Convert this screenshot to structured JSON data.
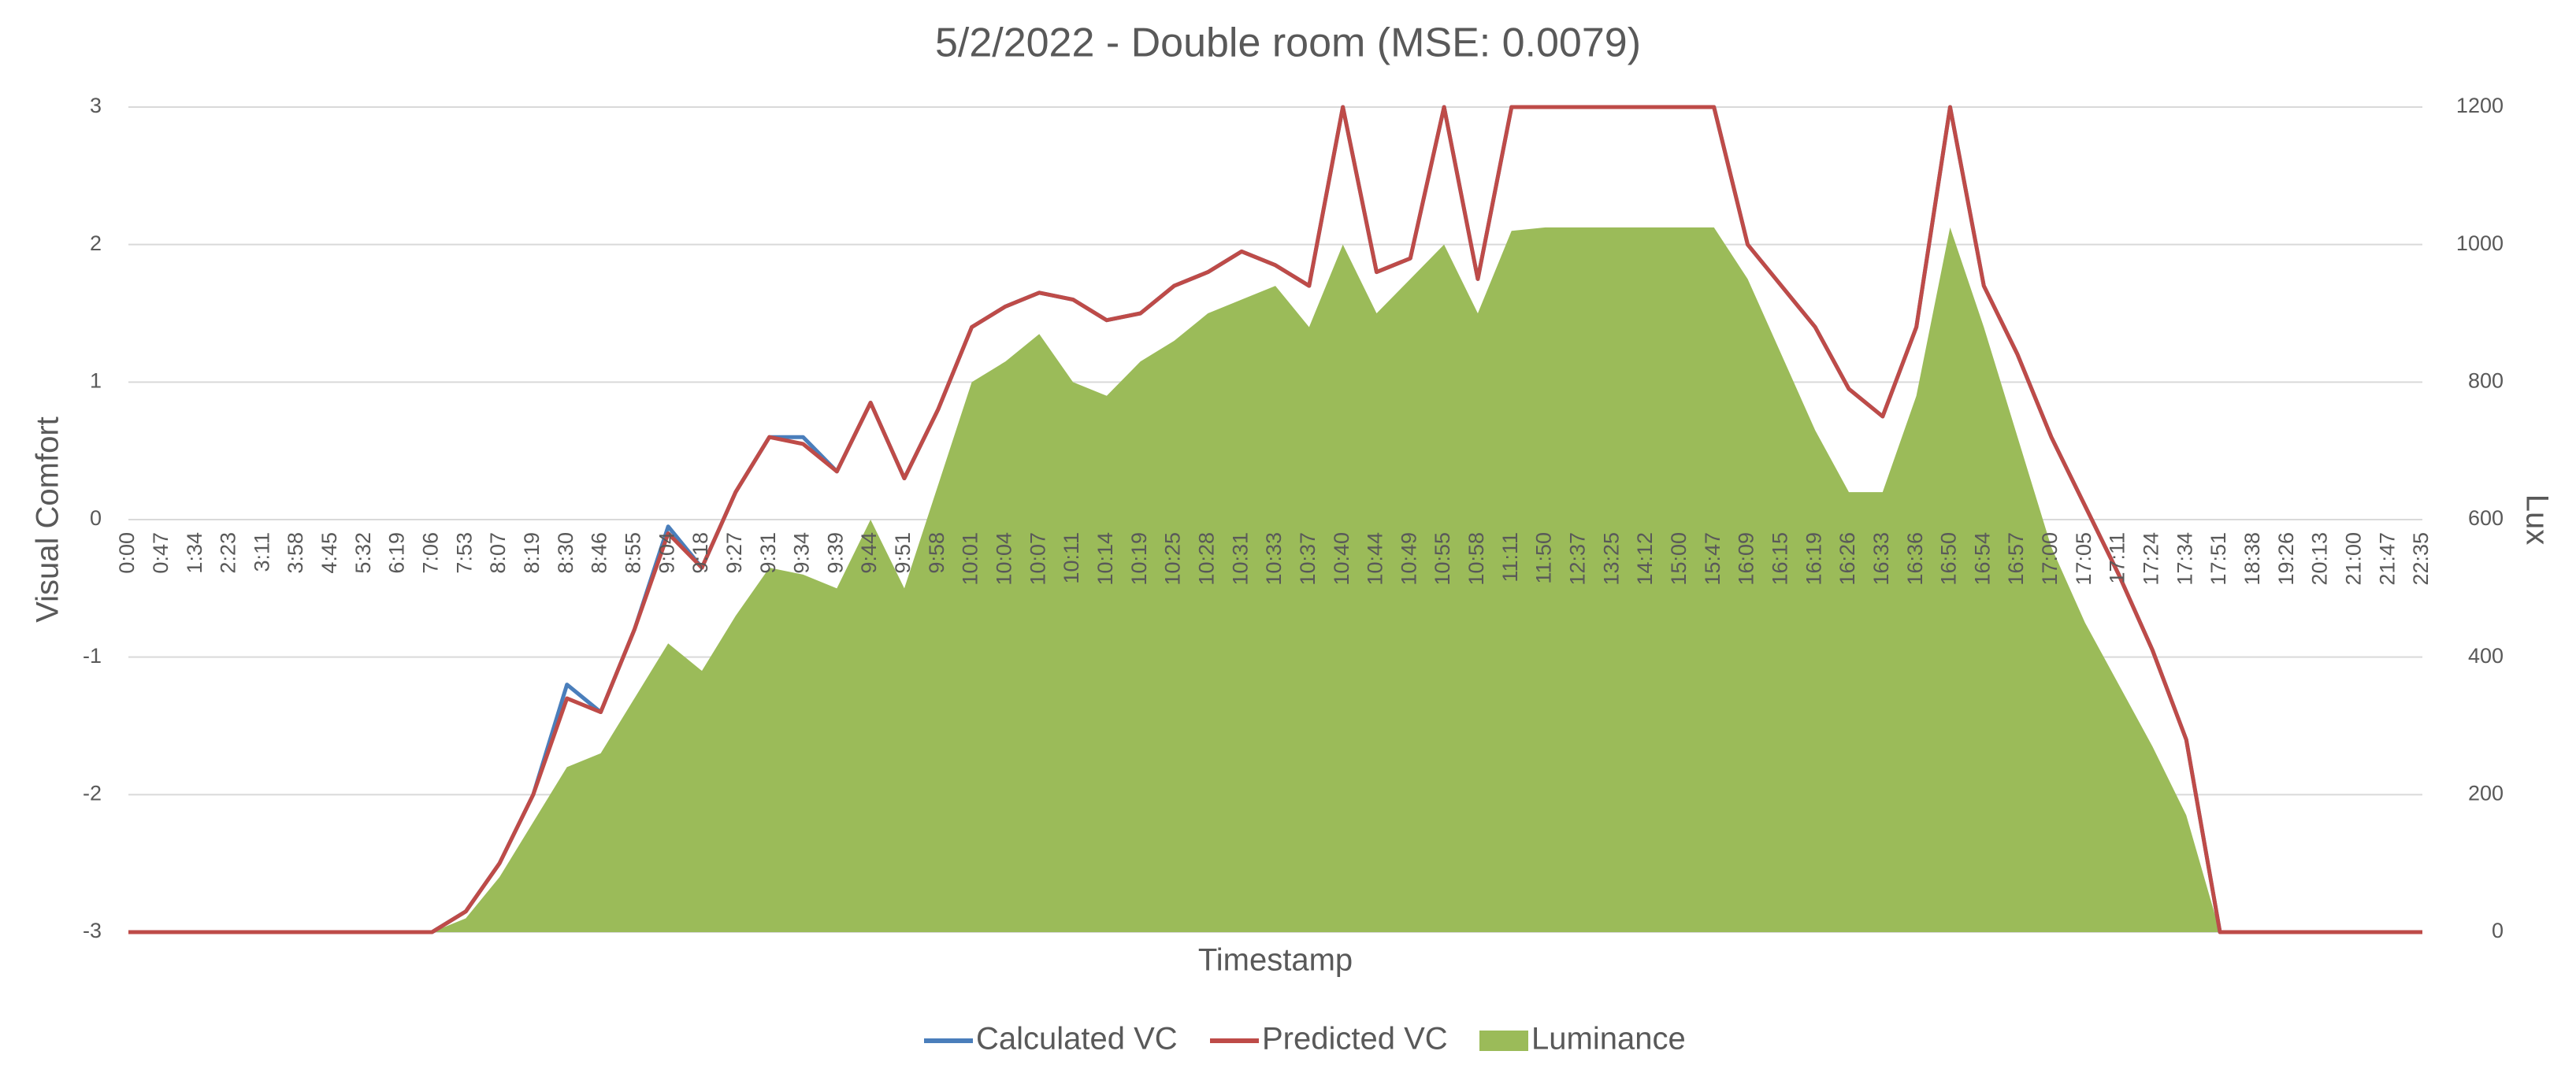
{
  "chart_data": {
    "type": "line",
    "title": "5/2/2022 - Double room (MSE: 0.0079)",
    "x_label": "Timestamp",
    "y_label": "Visual Comfort",
    "y2_label": "Lux",
    "categories": [
      "0:00",
      "0:47",
      "1:34",
      "2:23",
      "3:11",
      "3:58",
      "4:45",
      "5:32",
      "6:19",
      "7:06",
      "7:53",
      "8:07",
      "8:19",
      "8:30",
      "8:46",
      "8:55",
      "9:04",
      "9:18",
      "9:27",
      "9:31",
      "9:34",
      "9:39",
      "9:44",
      "9:51",
      "9:58",
      "10:01",
      "10:04",
      "10:07",
      "10:11",
      "10:14",
      "10:19",
      "10:25",
      "10:28",
      "10:31",
      "10:33",
      "10:37",
      "10:40",
      "10:44",
      "10:49",
      "10:55",
      "10:58",
      "11:11",
      "11:50",
      "12:37",
      "13:25",
      "14:12",
      "15:00",
      "15:47",
      "16:09",
      "16:15",
      "16:19",
      "16:26",
      "16:33",
      "16:36",
      "16:50",
      "16:54",
      "16:57",
      "17:00",
      "17:05",
      "17:11",
      "17:24",
      "17:34",
      "17:51",
      "18:38",
      "19:26",
      "20:13",
      "21:00",
      "21:47",
      "22:35"
    ],
    "series": [
      {
        "name": "Calculated VC",
        "color": "#4a7ebb",
        "values": [
          -3,
          -3,
          -3,
          -3,
          -3,
          -3,
          -3,
          -3,
          -3,
          -3,
          -2.85,
          -2.5,
          -2,
          -1.2,
          -1.4,
          -0.8,
          -0.05,
          -0.35,
          0.2,
          0.6,
          0.6,
          0.35,
          0.85,
          0.3,
          0.8,
          1.4,
          1.55,
          1.65,
          1.6,
          1.45,
          1.5,
          1.7,
          1.8,
          1.95,
          1.85,
          1.7,
          3,
          1.8,
          1.9,
          3,
          1.75,
          3,
          3,
          3,
          3,
          3,
          3,
          3,
          2,
          1.7,
          1.4,
          0.95,
          0.75,
          1.4,
          3,
          1.7,
          1.2,
          0.6,
          0.1,
          -0.4,
          -0.95,
          -1.6,
          -3,
          -3,
          -3,
          -3,
          -3,
          -3,
          -3
        ]
      },
      {
        "name": "Predicted VC",
        "color": "#be4b48",
        "values": [
          -3,
          -3,
          -3,
          -3,
          -3,
          -3,
          -3,
          -3,
          -3,
          -3,
          -2.85,
          -2.5,
          -2,
          -1.3,
          -1.4,
          -0.8,
          -0.1,
          -0.35,
          0.2,
          0.6,
          0.55,
          0.35,
          0.85,
          0.3,
          0.8,
          1.4,
          1.55,
          1.65,
          1.6,
          1.45,
          1.5,
          1.7,
          1.8,
          1.95,
          1.85,
          1.7,
          3,
          1.8,
          1.9,
          3,
          1.75,
          3,
          3,
          3,
          3,
          3,
          3,
          3,
          2,
          1.7,
          1.4,
          0.95,
          0.75,
          1.4,
          3,
          1.7,
          1.2,
          0.6,
          0.1,
          -0.4,
          -0.95,
          -1.6,
          -3,
          -3,
          -3,
          -3,
          -3,
          -3,
          -3
        ]
      },
      {
        "name": "Luminance",
        "color": "#9bbb59",
        "type": "area",
        "axis": "y2",
        "values": [
          0,
          0,
          0,
          0,
          0,
          0,
          0,
          0,
          0,
          0,
          20,
          80,
          160,
          240,
          260,
          340,
          420,
          380,
          460,
          530,
          520,
          500,
          600,
          500,
          650,
          800,
          830,
          870,
          800,
          780,
          830,
          860,
          900,
          920,
          940,
          880,
          1000,
          900,
          950,
          1000,
          900,
          1020,
          1025,
          1025,
          1025,
          1025,
          1025,
          1025,
          950,
          840,
          730,
          640,
          640,
          780,
          1025,
          880,
          720,
          560,
          450,
          360,
          270,
          170,
          0,
          0,
          0,
          0,
          0,
          0,
          0
        ]
      }
    ],
    "ylim": [
      -3,
      3
    ],
    "yticks": [
      -3,
      -2,
      -1,
      0,
      1,
      2,
      3
    ],
    "y2lim": [
      0,
      1200
    ],
    "y2ticks": [
      0,
      200,
      400,
      600,
      800,
      1000,
      1200
    ],
    "grid": true,
    "legend": "bottom"
  }
}
